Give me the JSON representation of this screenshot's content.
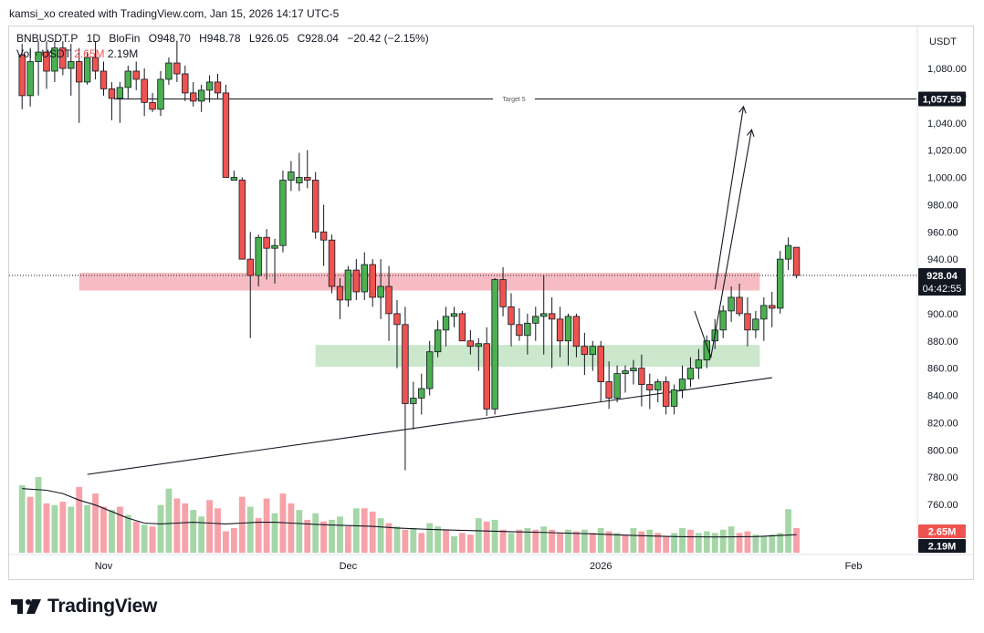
{
  "header": {
    "attribution": "kamsi_xo created with TradingView.com, Jan 15, 2026 14:17 UTC-5"
  },
  "legend": {
    "symbol": "BNBUSDT.P",
    "timeframe": "1D",
    "exchange": "BloFin",
    "open": "O948.70",
    "high": "H948.78",
    "low": "L926.05",
    "close": "C928.04",
    "change": "−20.42 (−2.15%)",
    "volume_label": "Vol · USDT",
    "volume_value_1": "2.65M",
    "volume_value_2": "2.19M"
  },
  "branding": {
    "logo_text": "TradingView"
  },
  "chart_data": {
    "type": "candlestick",
    "currency": "USDT",
    "y_range": [
      730,
      1100
    ],
    "y_ticks": [
      "1,080.00",
      "1,060.00",
      "1,040.00",
      "1,020.00",
      "1,000.00",
      "980.00",
      "960.00",
      "940.00",
      "920.00",
      "900.00",
      "880.00",
      "860.00",
      "840.00",
      "820.00",
      "800.00",
      "780.00",
      "760.00"
    ],
    "y_tick_values": [
      1080,
      1060,
      1040,
      1020,
      1000,
      980,
      960,
      940,
      920,
      900,
      880,
      860,
      840,
      820,
      800,
      780,
      760
    ],
    "x_labels": [
      {
        "label": "Nov",
        "day": 0
      },
      {
        "label": "Dec",
        "day": 30
      },
      {
        "label": "2026",
        "day": 61
      },
      {
        "label": "Feb",
        "day": 92
      }
    ],
    "first_day": "2025-10-21",
    "last_price": {
      "value": 928.04,
      "label": "928.04",
      "countdown": "04:42:55"
    },
    "target": {
      "label": "Target 5",
      "value": 1057.59,
      "text": "1,057.59"
    },
    "volume_badges": [
      "2.65M",
      "2.19M"
    ],
    "zones": [
      {
        "name": "resistance",
        "low": 917,
        "high": 930,
        "color": "#f7b8c0",
        "from_day": -3,
        "to_day": 80.5
      },
      {
        "name": "support",
        "low": 861,
        "high": 877,
        "color": "#c8e6c9",
        "from_day": 26,
        "to_day": 80.5
      }
    ],
    "trendlines": [
      {
        "from": [
          -2,
          782
        ],
        "to": [
          82,
          853
        ]
      }
    ],
    "projections": [
      {
        "points": [
          [
            75,
            918
          ],
          [
            78.5,
            1052
          ]
        ]
      },
      {
        "points": [
          [
            72.5,
            902
          ],
          [
            74.5,
            868
          ],
          [
            79.5,
            1035
          ]
        ]
      }
    ],
    "candles": [
      [
        -10,
        1090,
        1098,
        1050,
        1060
      ],
      [
        -9,
        1060,
        1095,
        1052,
        1085
      ],
      [
        -8,
        1085,
        1100,
        1060,
        1092
      ],
      [
        -7,
        1092,
        1100,
        1065,
        1078
      ],
      [
        -6,
        1078,
        1100,
        1070,
        1095
      ],
      [
        -5,
        1095,
        1100,
        1075,
        1080
      ],
      [
        -4,
        1080,
        1098,
        1060,
        1085
      ],
      [
        -3,
        1085,
        1095,
        1040,
        1070
      ],
      [
        -2,
        1070,
        1092,
        1068,
        1088
      ],
      [
        -1,
        1088,
        1100,
        1072,
        1078
      ],
      [
        0,
        1078,
        1085,
        1060,
        1065
      ],
      [
        1,
        1065,
        1070,
        1042,
        1058
      ],
      [
        2,
        1058,
        1070,
        1040,
        1066
      ],
      [
        3,
        1066,
        1082,
        1058,
        1078
      ],
      [
        4,
        1078,
        1085,
        1064,
        1072
      ],
      [
        5,
        1072,
        1080,
        1045,
        1055
      ],
      [
        6,
        1055,
        1062,
        1048,
        1050
      ],
      [
        7,
        1050,
        1078,
        1045,
        1072
      ],
      [
        8,
        1072,
        1088,
        1068,
        1084
      ],
      [
        9,
        1084,
        1100,
        1070,
        1076
      ],
      [
        10,
        1076,
        1082,
        1056,
        1062
      ],
      [
        11,
        1062,
        1070,
        1052,
        1056
      ],
      [
        12,
        1056,
        1068,
        1048,
        1064
      ],
      [
        13,
        1064,
        1075,
        1055,
        1070
      ],
      [
        14,
        1070,
        1076,
        1058,
        1062
      ],
      [
        15,
        1062,
        1068,
        1000,
        1000
      ],
      [
        16,
        998,
        1005,
        1000,
        1000
      ],
      [
        17,
        998,
        1000,
        940,
        940
      ],
      [
        18,
        940,
        960,
        882,
        928
      ],
      [
        19,
        928,
        958,
        920,
        956
      ],
      [
        20,
        956,
        962,
        925,
        948
      ],
      [
        21,
        948,
        955,
        922,
        950
      ],
      [
        22,
        950,
        1005,
        945,
        998
      ],
      [
        23,
        998,
        1012,
        990,
        1004
      ],
      [
        24,
        996,
        1018,
        990,
        1000
      ],
      [
        25,
        1000,
        1020,
        992,
        998
      ],
      [
        26,
        998,
        1004,
        955,
        960
      ],
      [
        27,
        960,
        980,
        935,
        954
      ],
      [
        28,
        954,
        958,
        915,
        920
      ],
      [
        29,
        920,
        926,
        896,
        910
      ],
      [
        30,
        910,
        935,
        905,
        932
      ],
      [
        31,
        932,
        940,
        910,
        916
      ],
      [
        32,
        916,
        945,
        910,
        936
      ],
      [
        33,
        936,
        940,
        905,
        912
      ],
      [
        34,
        912,
        940,
        896,
        920
      ],
      [
        35,
        920,
        935,
        880,
        900
      ],
      [
        36,
        900,
        910,
        860,
        892
      ],
      [
        37,
        892,
        905,
        785,
        834
      ],
      [
        38,
        834,
        850,
        815,
        838
      ],
      [
        39,
        838,
        856,
        826,
        845
      ],
      [
        40,
        845,
        880,
        840,
        872
      ],
      [
        41,
        872,
        895,
        868,
        888
      ],
      [
        42,
        888,
        905,
        876,
        898
      ],
      [
        43,
        898,
        905,
        890,
        900
      ],
      [
        44,
        900,
        902,
        882,
        880
      ],
      [
        45,
        880,
        888,
        870,
        876
      ],
      [
        46,
        876,
        882,
        858,
        878
      ],
      [
        47,
        878,
        890,
        825,
        830
      ],
      [
        48,
        830,
        926,
        826,
        925
      ],
      [
        49,
        925,
        934,
        898,
        905
      ],
      [
        50,
        905,
        915,
        876,
        892
      ],
      [
        51,
        892,
        904,
        880,
        884
      ],
      [
        52,
        884,
        900,
        870,
        893
      ],
      [
        53,
        893,
        905,
        880,
        898
      ],
      [
        54,
        898,
        928,
        870,
        900
      ],
      [
        55,
        900,
        912,
        860,
        896
      ],
      [
        56,
        896,
        905,
        868,
        880
      ],
      [
        57,
        880,
        900,
        862,
        898
      ],
      [
        58,
        898,
        900,
        868,
        876
      ],
      [
        59,
        876,
        886,
        855,
        870
      ],
      [
        60,
        870,
        880,
        858,
        876
      ],
      [
        61,
        876,
        880,
        835,
        850
      ],
      [
        62,
        850,
        865,
        830,
        838
      ],
      [
        63,
        838,
        862,
        835,
        856
      ],
      [
        64,
        856,
        862,
        842,
        858
      ],
      [
        65,
        858,
        866,
        848,
        860
      ],
      [
        66,
        860,
        870,
        832,
        848
      ],
      [
        67,
        848,
        856,
        830,
        844
      ],
      [
        68,
        844,
        852,
        835,
        850
      ],
      [
        69,
        850,
        854,
        826,
        832
      ],
      [
        70,
        832,
        848,
        826,
        844
      ],
      [
        71,
        844,
        862,
        838,
        852
      ],
      [
        72,
        852,
        868,
        846,
        860
      ],
      [
        73,
        860,
        874,
        852,
        866
      ],
      [
        74,
        866,
        884,
        860,
        880
      ],
      [
        75,
        880,
        896,
        874,
        888
      ],
      [
        76,
        888,
        906,
        882,
        902
      ],
      [
        77,
        902,
        920,
        894,
        912
      ],
      [
        78,
        912,
        922,
        898,
        900
      ],
      [
        79,
        900,
        912,
        876,
        888
      ],
      [
        80,
        888,
        902,
        882,
        896
      ],
      [
        81,
        896,
        912,
        880,
        906
      ],
      [
        82,
        906,
        916,
        890,
        904
      ],
      [
        83,
        904,
        946,
        900,
        940
      ],
      [
        84,
        940,
        956,
        932,
        950
      ],
      [
        85,
        948.7,
        948.78,
        926.05,
        928.04
      ]
    ],
    "volume_scale_max": 5.6,
    "volumes": [
      [
        -10,
        4.1,
        1
      ],
      [
        -9,
        3.4,
        0
      ],
      [
        -8,
        4.6,
        1
      ],
      [
        -7,
        3.0,
        0
      ],
      [
        -6,
        2.9,
        1
      ],
      [
        -5,
        3.1,
        0
      ],
      [
        -4,
        2.8,
        1
      ],
      [
        -3,
        4.0,
        0
      ],
      [
        -2,
        2.9,
        1
      ],
      [
        -1,
        3.6,
        0
      ],
      [
        0,
        2.8,
        0
      ],
      [
        1,
        2.6,
        1
      ],
      [
        2,
        2.8,
        0
      ],
      [
        3,
        2.3,
        1
      ],
      [
        4,
        1.9,
        0
      ],
      [
        5,
        1.7,
        1
      ],
      [
        6,
        1.6,
        0
      ],
      [
        7,
        2.9,
        1
      ],
      [
        8,
        3.9,
        1
      ],
      [
        9,
        3.3,
        0
      ],
      [
        10,
        3.0,
        0
      ],
      [
        11,
        2.6,
        1
      ],
      [
        12,
        2.2,
        1
      ],
      [
        13,
        3.2,
        0
      ],
      [
        14,
        2.7,
        0
      ],
      [
        15,
        1.3,
        0
      ],
      [
        16,
        1.5,
        0
      ],
      [
        17,
        3.4,
        0
      ],
      [
        18,
        2.8,
        1
      ],
      [
        19,
        2.1,
        0
      ],
      [
        20,
        3.3,
        0
      ],
      [
        21,
        2.4,
        1
      ],
      [
        22,
        3.6,
        0
      ],
      [
        23,
        3.0,
        0
      ],
      [
        24,
        2.6,
        1
      ],
      [
        25,
        2.0,
        0
      ],
      [
        26,
        2.4,
        1
      ],
      [
        27,
        1.9,
        0
      ],
      [
        28,
        2.0,
        1
      ],
      [
        29,
        2.2,
        1
      ],
      [
        30,
        1.6,
        0
      ],
      [
        31,
        2.7,
        1
      ],
      [
        32,
        2.7,
        0
      ],
      [
        33,
        2.5,
        0
      ],
      [
        34,
        2.1,
        1
      ],
      [
        35,
        1.8,
        0
      ],
      [
        36,
        1.6,
        1
      ],
      [
        37,
        1.4,
        0
      ],
      [
        38,
        1.5,
        1
      ],
      [
        39,
        1.2,
        0
      ],
      [
        40,
        1.8,
        1
      ],
      [
        41,
        1.6,
        1
      ],
      [
        42,
        1.4,
        0
      ],
      [
        43,
        1.0,
        1
      ],
      [
        44,
        1.2,
        0
      ],
      [
        45,
        1.1,
        0
      ],
      [
        46,
        2.1,
        1
      ],
      [
        47,
        1.9,
        0
      ],
      [
        48,
        2.0,
        1
      ],
      [
        49,
        1.4,
        0
      ],
      [
        50,
        1.2,
        1
      ],
      [
        51,
        1.4,
        0
      ],
      [
        52,
        1.5,
        1
      ],
      [
        53,
        1.4,
        0
      ],
      [
        54,
        1.6,
        1
      ],
      [
        55,
        1.4,
        0
      ],
      [
        56,
        1.2,
        0
      ],
      [
        57,
        1.4,
        1
      ],
      [
        58,
        1.3,
        0
      ],
      [
        59,
        1.4,
        1
      ],
      [
        60,
        1.2,
        0
      ],
      [
        61,
        1.5,
        1
      ],
      [
        62,
        1.3,
        0
      ],
      [
        63,
        1.2,
        1
      ],
      [
        64,
        1.1,
        0
      ],
      [
        65,
        1.5,
        1
      ],
      [
        66,
        1.3,
        0
      ],
      [
        67,
        1.4,
        1
      ],
      [
        68,
        1.2,
        0
      ],
      [
        69,
        1.0,
        0
      ],
      [
        70,
        1.2,
        1
      ],
      [
        71,
        1.5,
        1
      ],
      [
        72,
        1.4,
        0
      ],
      [
        73,
        1.2,
        1
      ],
      [
        74,
        1.3,
        1
      ],
      [
        75,
        1.2,
        1
      ],
      [
        76,
        1.4,
        1
      ],
      [
        77,
        1.6,
        1
      ],
      [
        78,
        1.2,
        0
      ],
      [
        79,
        1.3,
        0
      ],
      [
        80,
        1.1,
        1
      ],
      [
        81,
        1.0,
        1
      ],
      [
        82,
        1.1,
        1
      ],
      [
        83,
        1.2,
        1
      ],
      [
        84,
        2.65,
        1
      ],
      [
        85,
        1.5,
        0
      ]
    ],
    "volume_ma": [
      [
        -10,
        3.9
      ],
      [
        -7,
        3.8
      ],
      [
        -5,
        3.6
      ],
      [
        -3,
        3.2
      ],
      [
        -1,
        2.9
      ],
      [
        1,
        2.5
      ],
      [
        3,
        2.1
      ],
      [
        5,
        1.8
      ],
      [
        7,
        1.75
      ],
      [
        9,
        1.8
      ],
      [
        11,
        1.85
      ],
      [
        13,
        1.8
      ],
      [
        15,
        1.75
      ],
      [
        17,
        1.8
      ],
      [
        19,
        1.85
      ],
      [
        21,
        1.85
      ],
      [
        23,
        1.8
      ],
      [
        25,
        1.75
      ],
      [
        27,
        1.7
      ],
      [
        30,
        1.65
      ],
      [
        33,
        1.6
      ],
      [
        36,
        1.5
      ],
      [
        40,
        1.42
      ],
      [
        45,
        1.35
      ],
      [
        50,
        1.28
      ],
      [
        55,
        1.22
      ],
      [
        60,
        1.15
      ],
      [
        65,
        1.05
      ],
      [
        70,
        0.98
      ],
      [
        75,
        0.96
      ],
      [
        80,
        0.98
      ],
      [
        85,
        1.1
      ]
    ]
  },
  "colors": {
    "up": "#26a69a",
    "down": "#ef5350",
    "up_candle": "#4caf50",
    "down_candle": "#ef5350",
    "vol_up": "#a5d6a7",
    "vol_down": "#f7a1a8",
    "text": "#131722",
    "axis": "#131722"
  }
}
